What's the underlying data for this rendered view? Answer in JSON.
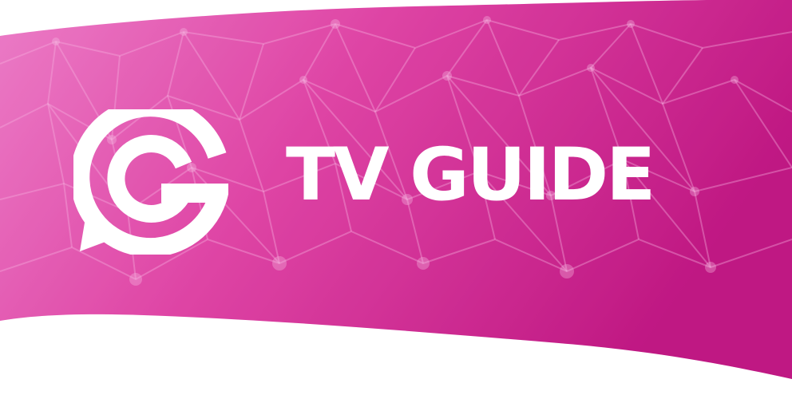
{
  "banner": {
    "title": "TV GUIDE",
    "brand_mark_icon": "cg-speech-bubble-logo-icon",
    "colors": {
      "gradient_left": "#f28ad0",
      "gradient_mid": "#e34aa9",
      "gradient_right": "#c01883",
      "text": "#ffffff",
      "network_lines": "#ffc4ec",
      "page_background": "#ffffff"
    }
  }
}
